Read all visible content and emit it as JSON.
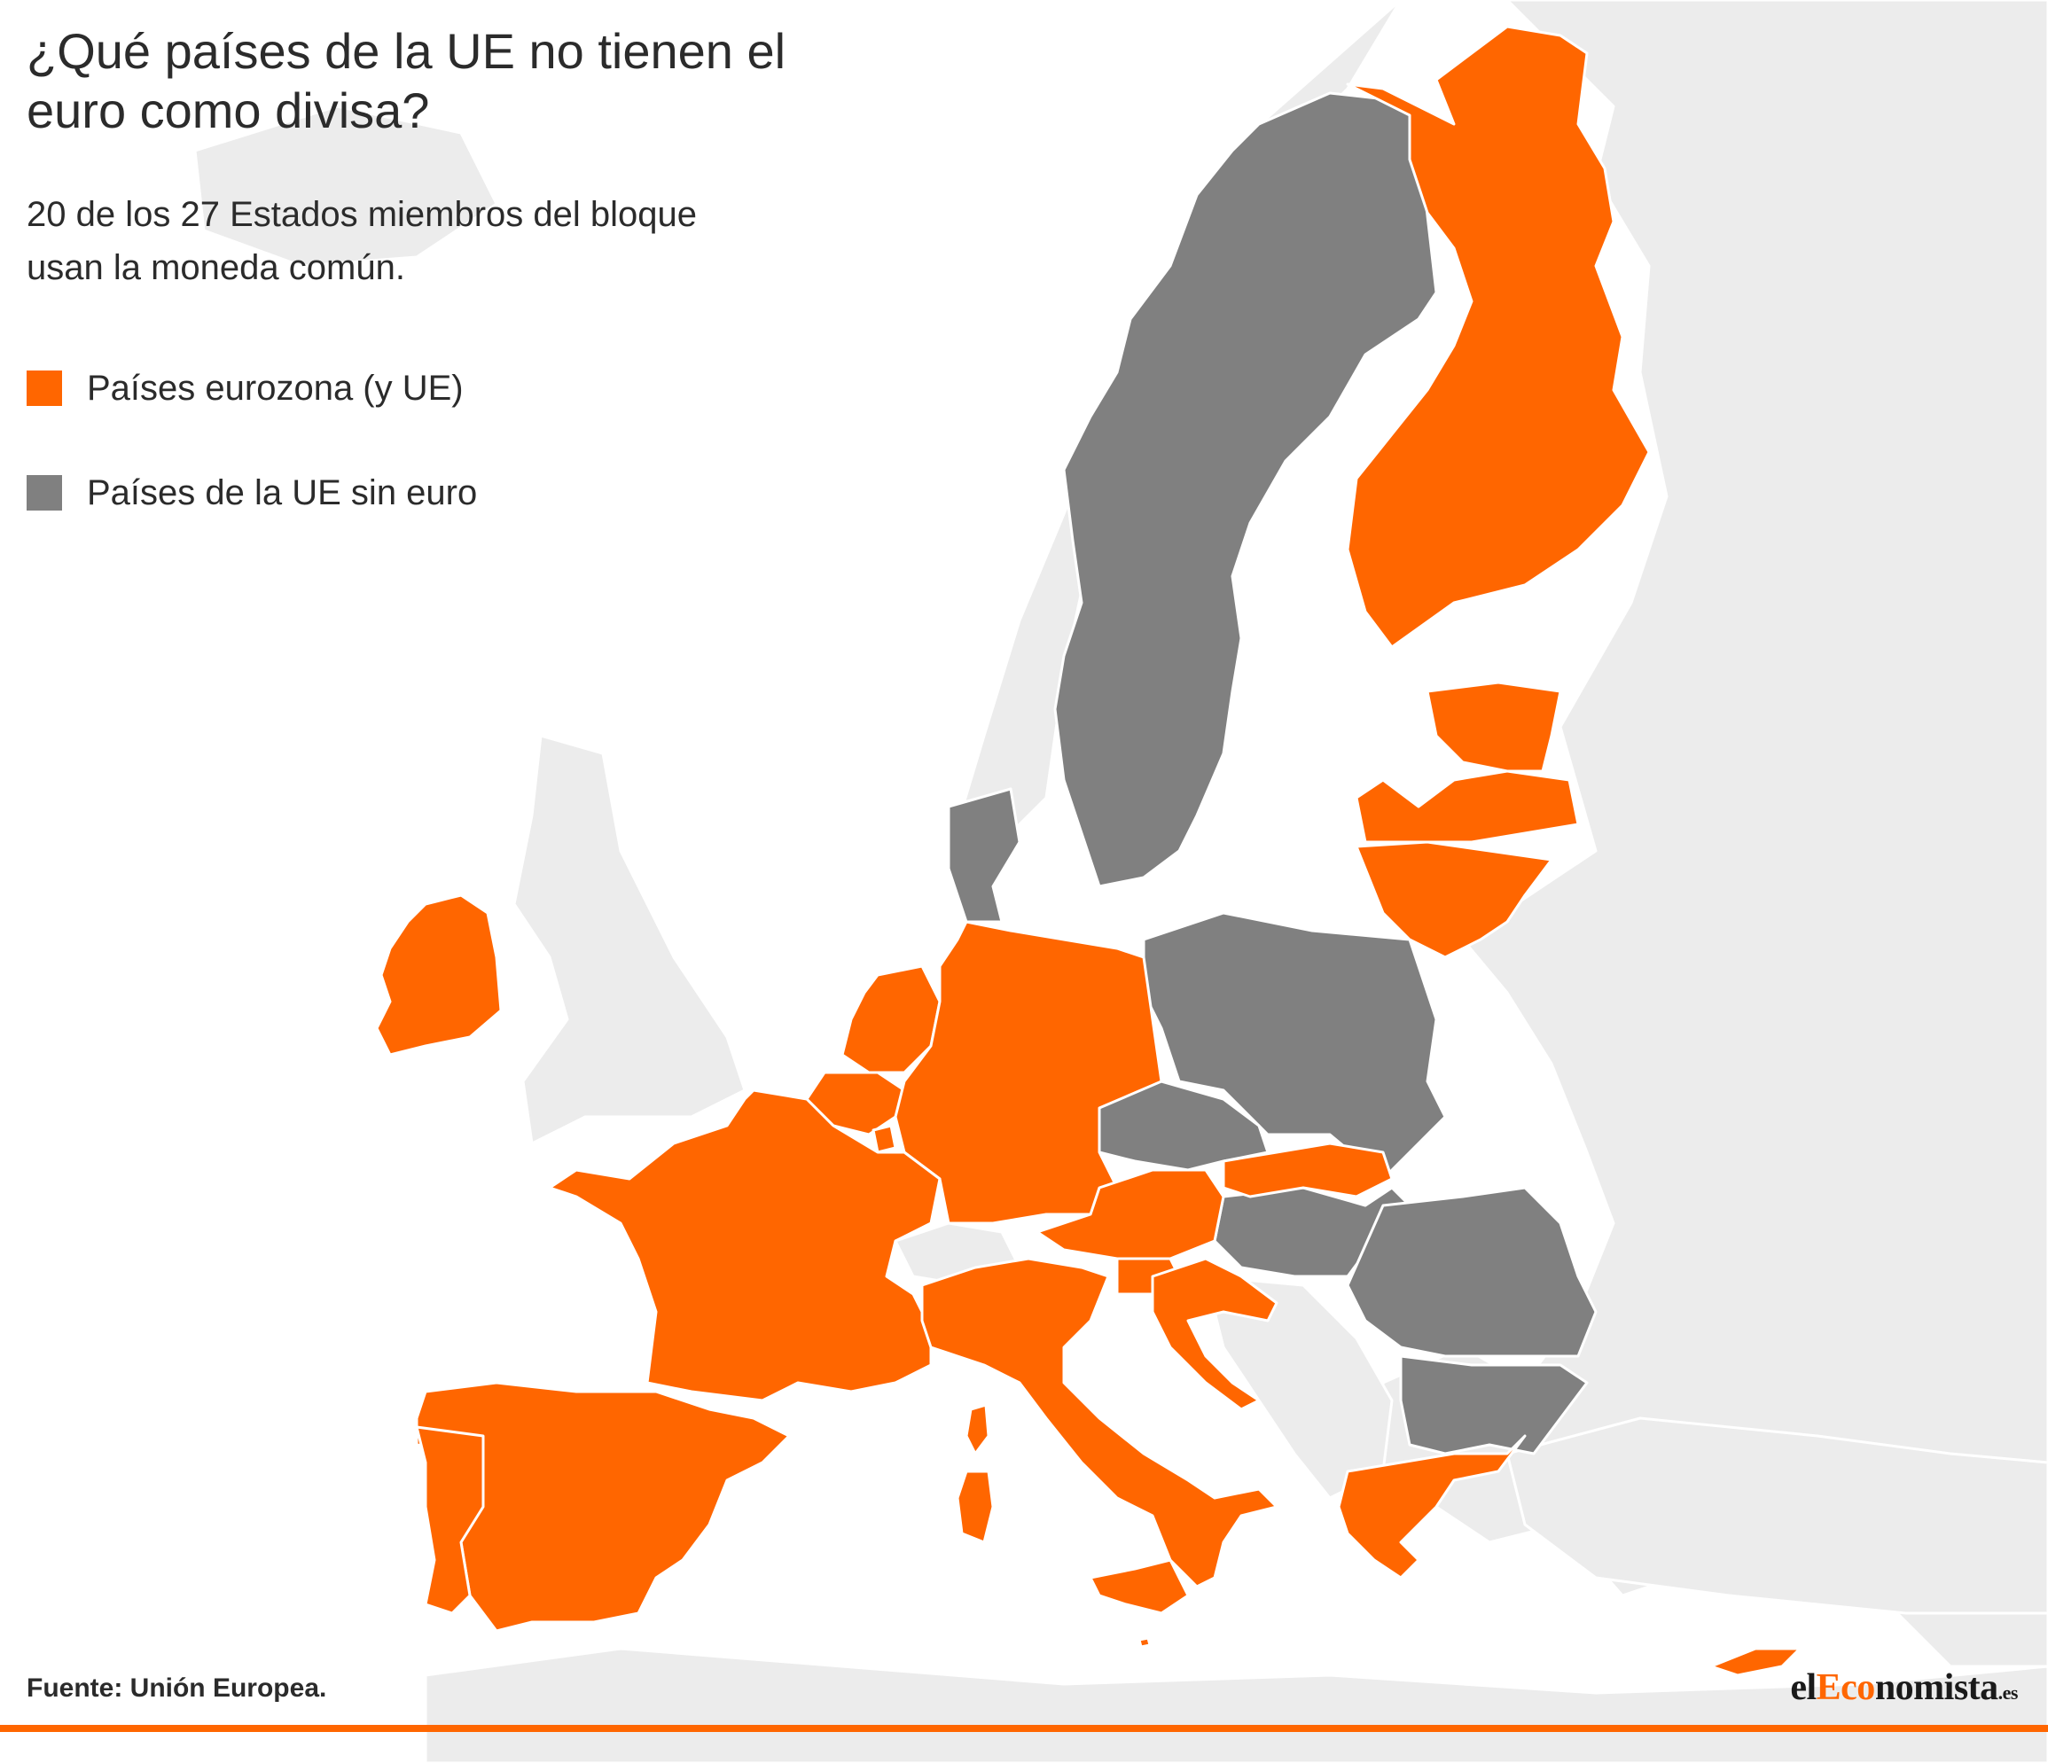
{
  "title": "¿Qué países de la UE no tienen el euro como divisa?",
  "subtitle": "20 de los 27 Estados miembros del bloque usan la moneda común.",
  "legend": [
    {
      "label": "Países eurozona (y UE)",
      "color": "#ff6600"
    },
    {
      "label": "Países de la UE sin euro",
      "color": "#808080"
    }
  ],
  "source": "Fuente: Unión Europea.",
  "logo": {
    "part1": "el",
    "part2": "Eco",
    "part3": "nomista",
    "part4": ".es"
  },
  "colors": {
    "eurozone": "#ff6600",
    "non_euro_eu": "#808080",
    "non_eu_land": "#ececec",
    "sea": "#ffffff"
  },
  "map": {
    "eurozone_countries": [
      "Ireland",
      "Portugal",
      "Spain",
      "France",
      "Belgium",
      "Netherlands",
      "Luxembourg",
      "Germany",
      "Austria",
      "Italy",
      "Slovenia",
      "Croatia",
      "Slovakia",
      "Finland",
      "Estonia",
      "Latvia",
      "Lithuania",
      "Greece",
      "Cyprus",
      "Malta"
    ],
    "non_euro_eu_countries": [
      "Sweden",
      "Denmark",
      "Poland",
      "Czechia",
      "Hungary",
      "Romania",
      "Bulgaria"
    ]
  }
}
